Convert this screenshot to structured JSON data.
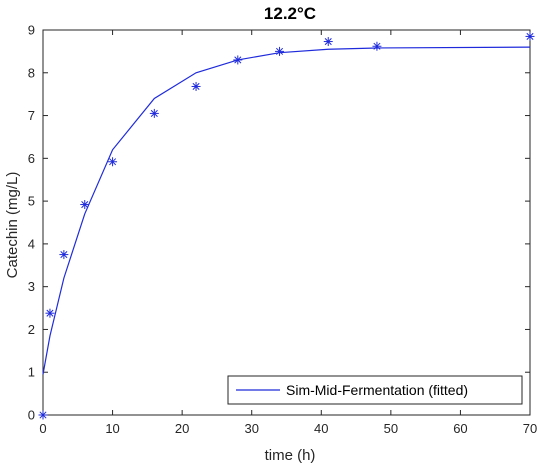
{
  "chart_data": {
    "type": "line",
    "title": "12.2°C",
    "xlabel": "time (h)",
    "ylabel": "Catechin (mg/L)",
    "xlim": [
      0,
      70
    ],
    "ylim": [
      0,
      9
    ],
    "xticks": [
      0,
      10,
      20,
      30,
      40,
      50,
      60,
      70
    ],
    "yticks": [
      0,
      1,
      2,
      3,
      4,
      5,
      6,
      7,
      8,
      9
    ],
    "grid": false,
    "legend_position": "bottom-right",
    "colors": {
      "series": "#1f2bdb",
      "axis": "#262626"
    },
    "series": [
      {
        "name": "Sim-Mid-Fermentation (fitted)",
        "kind": "line",
        "x": [
          0,
          1,
          3,
          6,
          10,
          16,
          22,
          28,
          34,
          41,
          48,
          70
        ],
        "y": [
          0.95,
          1.85,
          3.2,
          4.7,
          6.2,
          7.4,
          8.0,
          8.3,
          8.47,
          8.55,
          8.58,
          8.6
        ]
      },
      {
        "kind": "scatter",
        "marker": "asterisk",
        "x": [
          0,
          1,
          3,
          6,
          10,
          16,
          22,
          28,
          34,
          41,
          48,
          70
        ],
        "y": [
          0.0,
          2.38,
          3.75,
          4.92,
          5.92,
          7.05,
          7.68,
          8.3,
          8.5,
          8.73,
          8.62,
          8.85
        ]
      }
    ]
  }
}
